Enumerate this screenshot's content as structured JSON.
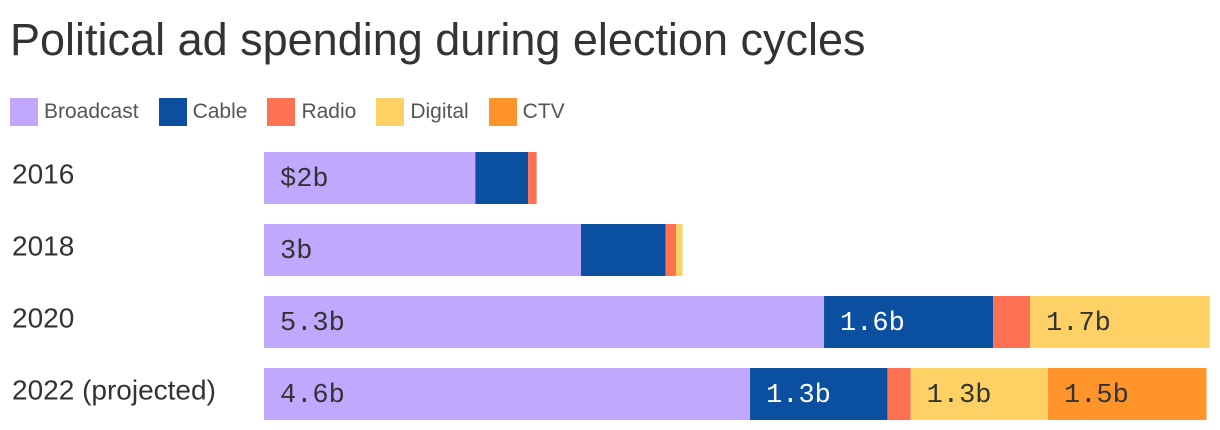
{
  "chart_data": {
    "type": "bar",
    "orientation": "horizontal",
    "stacked": true,
    "title": "Political ad spending during election cycles",
    "xlabel": "",
    "ylabel": "",
    "xlim": [
      0,
      9.0
    ],
    "grid": false,
    "legend_position": "top-left",
    "categories": [
      "2016",
      "2018",
      "2020",
      "2022 (projected)"
    ],
    "series": [
      {
        "name": "Broadcast",
        "color": "#bfa8fd",
        "text_color": "#333333",
        "values": [
          2.0,
          3.0,
          5.3,
          4.6
        ],
        "labels": [
          "$2b",
          "3b",
          "5.3b",
          "4.6b"
        ]
      },
      {
        "name": "Cable",
        "color": "#0a4fa0",
        "text_color": "#ffffff",
        "values": [
          0.5,
          0.8,
          1.6,
          1.3
        ],
        "labels": [
          "",
          "",
          "1.6b",
          "1.3b"
        ]
      },
      {
        "name": "Radio",
        "color": "#ff7153",
        "text_color": "#333333",
        "values": [
          0.08,
          0.1,
          0.35,
          0.22
        ],
        "labels": [
          "",
          "",
          "",
          ""
        ]
      },
      {
        "name": "Digital",
        "color": "#fdd163",
        "text_color": "#333333",
        "values": [
          0.0,
          0.06,
          1.7,
          1.3
        ],
        "labels": [
          "",
          "",
          "1.7b",
          "1.3b"
        ]
      },
      {
        "name": "CTV",
        "color": "#ff952a",
        "text_color": "#333333",
        "values": [
          0.0,
          0.0,
          0.0,
          1.5
        ],
        "labels": [
          "",
          "",
          "",
          "1.5b"
        ]
      }
    ]
  }
}
